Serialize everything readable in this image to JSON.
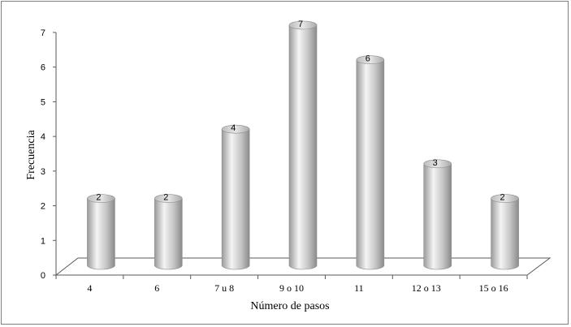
{
  "chart_data": {
    "type": "bar",
    "style": "3d-cylinder",
    "categories": [
      "4",
      "6",
      "7 u 8",
      "9 o 10",
      "11",
      "12 o 13",
      "15 o 16"
    ],
    "values": [
      2,
      2,
      4,
      7,
      6,
      3,
      2
    ],
    "data_labels": [
      "2",
      "2",
      "4",
      "7",
      "6",
      "3",
      "2"
    ],
    "xlabel": "Número de pasos",
    "ylabel": "Frecuencia",
    "ylim": [
      0,
      7
    ],
    "yticks": [
      "0",
      "1",
      "2",
      "3",
      "4",
      "5",
      "6",
      "7"
    ],
    "grid": false,
    "legend": "none",
    "colors": {
      "bar_light": "#f2f2f2",
      "bar_mid": "#c8c8c8",
      "bar_dark": "#8c8c8c",
      "axis": "#595959",
      "border": "#7f7f7f"
    }
  }
}
